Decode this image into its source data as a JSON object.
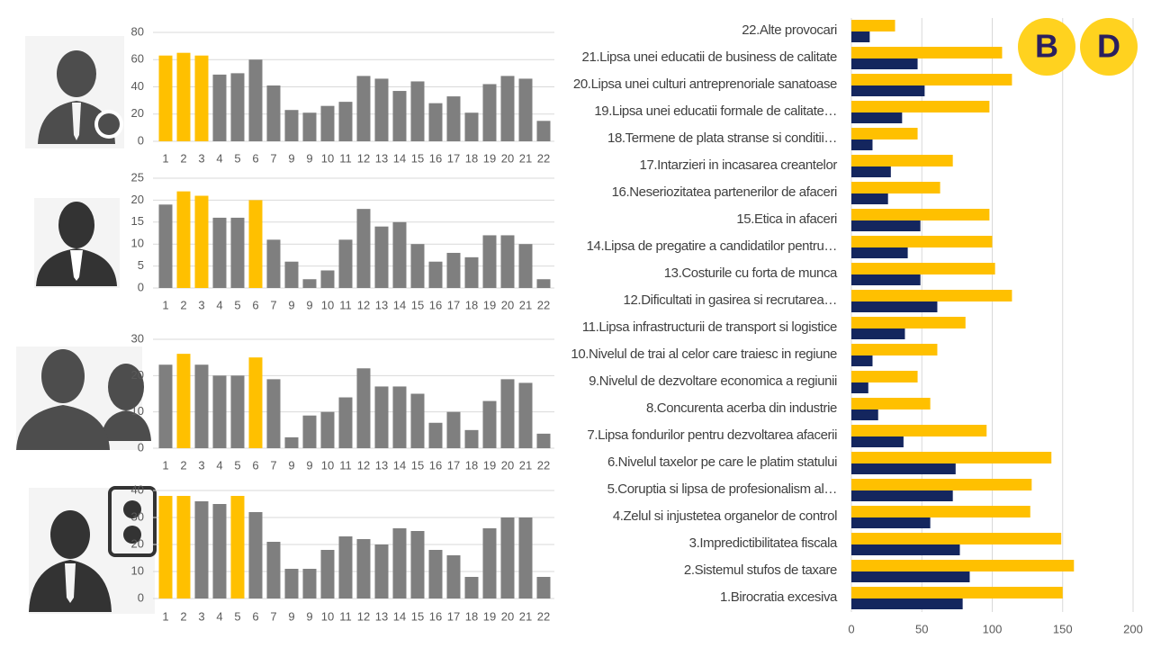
{
  "chart_data": [
    {
      "type": "bar",
      "orientation": "vertical",
      "grid": true,
      "categories": [
        "1",
        "2",
        "3",
        "4",
        "5",
        "6",
        "7",
        "9",
        "9",
        "10",
        "11",
        "12",
        "13",
        "14",
        "15",
        "16",
        "17",
        "18",
        "19",
        "20",
        "21",
        "22"
      ],
      "values": [
        63,
        65,
        63,
        49,
        50,
        60,
        41,
        23,
        21,
        26,
        29,
        48,
        46,
        37,
        44,
        28,
        33,
        21,
        42,
        48,
        46,
        15
      ],
      "colors": [
        "#FFC000",
        "#FFC000",
        "#FFC000",
        "#7F7F7F",
        "#7F7F7F",
        "#7F7F7F",
        "#7F7F7F",
        "#7F7F7F",
        "#7F7F7F",
        "#7F7F7F",
        "#7F7F7F",
        "#7F7F7F",
        "#7F7F7F",
        "#7F7F7F",
        "#7F7F7F",
        "#7F7F7F",
        "#7F7F7F",
        "#7F7F7F",
        "#7F7F7F",
        "#7F7F7F",
        "#7F7F7F",
        "#7F7F7F"
      ],
      "ylim": [
        0,
        80
      ],
      "yticks": [
        0,
        20,
        40,
        60,
        80
      ]
    },
    {
      "type": "bar",
      "orientation": "vertical",
      "grid": true,
      "categories": [
        "1",
        "2",
        "3",
        "4",
        "5",
        "6",
        "7",
        "9",
        "9",
        "10",
        "11",
        "12",
        "13",
        "14",
        "15",
        "16",
        "17",
        "18",
        "19",
        "20",
        "21",
        "22"
      ],
      "values": [
        19,
        22,
        21,
        16,
        16,
        20,
        11,
        6,
        2,
        4,
        11,
        18,
        14,
        15,
        10,
        6,
        8,
        7,
        12,
        12,
        10,
        2
      ],
      "colors": [
        "#7F7F7F",
        "#FFC000",
        "#FFC000",
        "#7F7F7F",
        "#7F7F7F",
        "#FFC000",
        "#7F7F7F",
        "#7F7F7F",
        "#7F7F7F",
        "#7F7F7F",
        "#7F7F7F",
        "#7F7F7F",
        "#7F7F7F",
        "#7F7F7F",
        "#7F7F7F",
        "#7F7F7F",
        "#7F7F7F",
        "#7F7F7F",
        "#7F7F7F",
        "#7F7F7F",
        "#7F7F7F",
        "#7F7F7F"
      ],
      "ylim": [
        0,
        25
      ],
      "yticks": [
        0,
        5,
        10,
        15,
        20,
        25
      ]
    },
    {
      "type": "bar",
      "orientation": "vertical",
      "grid": true,
      "categories": [
        "1",
        "2",
        "3",
        "4",
        "5",
        "6",
        "7",
        "9",
        "9",
        "10",
        "11",
        "12",
        "13",
        "14",
        "15",
        "16",
        "17",
        "18",
        "19",
        "20",
        "21",
        "22"
      ],
      "values": [
        23,
        26,
        23,
        20,
        20,
        25,
        19,
        3,
        9,
        10,
        14,
        22,
        17,
        17,
        15,
        7,
        10,
        5,
        13,
        19,
        18,
        4
      ],
      "colors": [
        "#7F7F7F",
        "#FFC000",
        "#7F7F7F",
        "#7F7F7F",
        "#7F7F7F",
        "#FFC000",
        "#7F7F7F",
        "#7F7F7F",
        "#7F7F7F",
        "#7F7F7F",
        "#7F7F7F",
        "#7F7F7F",
        "#7F7F7F",
        "#7F7F7F",
        "#7F7F7F",
        "#7F7F7F",
        "#7F7F7F",
        "#7F7F7F",
        "#7F7F7F",
        "#7F7F7F",
        "#7F7F7F",
        "#7F7F7F"
      ],
      "ylim": [
        0,
        30
      ],
      "yticks": [
        0,
        10,
        20,
        30
      ]
    },
    {
      "type": "bar",
      "orientation": "vertical",
      "grid": true,
      "categories": [
        "1",
        "2",
        "3",
        "4",
        "5",
        "6",
        "7",
        "9",
        "9",
        "10",
        "11",
        "12",
        "13",
        "14",
        "15",
        "16",
        "17",
        "18",
        "19",
        "20",
        "21",
        "22"
      ],
      "values": [
        38,
        38,
        36,
        35,
        38,
        32,
        21,
        11,
        11,
        18,
        23,
        22,
        20,
        26,
        25,
        18,
        16,
        8,
        26,
        30,
        30,
        8
      ],
      "colors": [
        "#FFC000",
        "#FFC000",
        "#7F7F7F",
        "#7F7F7F",
        "#FFC000",
        "#7F7F7F",
        "#7F7F7F",
        "#7F7F7F",
        "#7F7F7F",
        "#7F7F7F",
        "#7F7F7F",
        "#7F7F7F",
        "#7F7F7F",
        "#7F7F7F",
        "#7F7F7F",
        "#7F7F7F",
        "#7F7F7F",
        "#7F7F7F",
        "#7F7F7F",
        "#7F7F7F",
        "#7F7F7F",
        "#7F7F7F"
      ],
      "ylim": [
        0,
        40
      ],
      "yticks": [
        0,
        10,
        20,
        30,
        40
      ]
    },
    {
      "type": "bar",
      "orientation": "horizontal",
      "grid": true,
      "categories": [
        "1.Birocratia excesiva",
        "2.Sistemul stufos de taxare",
        "3.Impredictibilitatea fiscala",
        "4.Zelul si injustetea organelor de control",
        "5.Coruptia si lipsa de profesionalism al…",
        "6.Nivelul taxelor pe care le platim statului",
        "7.Lipsa fondurilor pentru dezvoltarea afacerii",
        "8.Concurenta acerba din industrie",
        "9.Nivelul de dezvoltare economica a regiunii",
        "10.Nivelul de trai al celor care traiesc in regiune",
        "11.Lipsa infrastructurii de transport si logistice",
        "12.Dificultati in gasirea si recrutarea…",
        "13.Costurile cu forta de munca",
        "14.Lipsa de pregatire a candidatilor pentru…",
        "15.Etica in afaceri",
        "16.Neseriozitatea partenerilor de afaceri",
        "17.Intarzieri in incasarea creantelor",
        "18.Termene de plata stranse si conditii…",
        "19.Lipsa unei educatii formale de calitate…",
        "20.Lipsa unei culturi antreprenoriale sanatoase",
        "21.Lipsa unei educatii de business de calitate",
        "22.Alte provocari"
      ],
      "series": [
        {
          "name": "B",
          "color": "#FFC000",
          "values": [
            150,
            158,
            149,
            127,
            128,
            142,
            96,
            56,
            47,
            61,
            81,
            114,
            102,
            100,
            98,
            63,
            72,
            47,
            98,
            114,
            107,
            31
          ]
        },
        {
          "name": "D",
          "color": "#14265E",
          "values": [
            79,
            84,
            77,
            56,
            72,
            74,
            37,
            19,
            12,
            15,
            38,
            61,
            49,
            40,
            49,
            26,
            28,
            15,
            36,
            52,
            47,
            13
          ]
        }
      ],
      "xlim": [
        0,
        200
      ],
      "xticks": [
        0,
        50,
        100,
        150,
        200
      ]
    }
  ]
}
